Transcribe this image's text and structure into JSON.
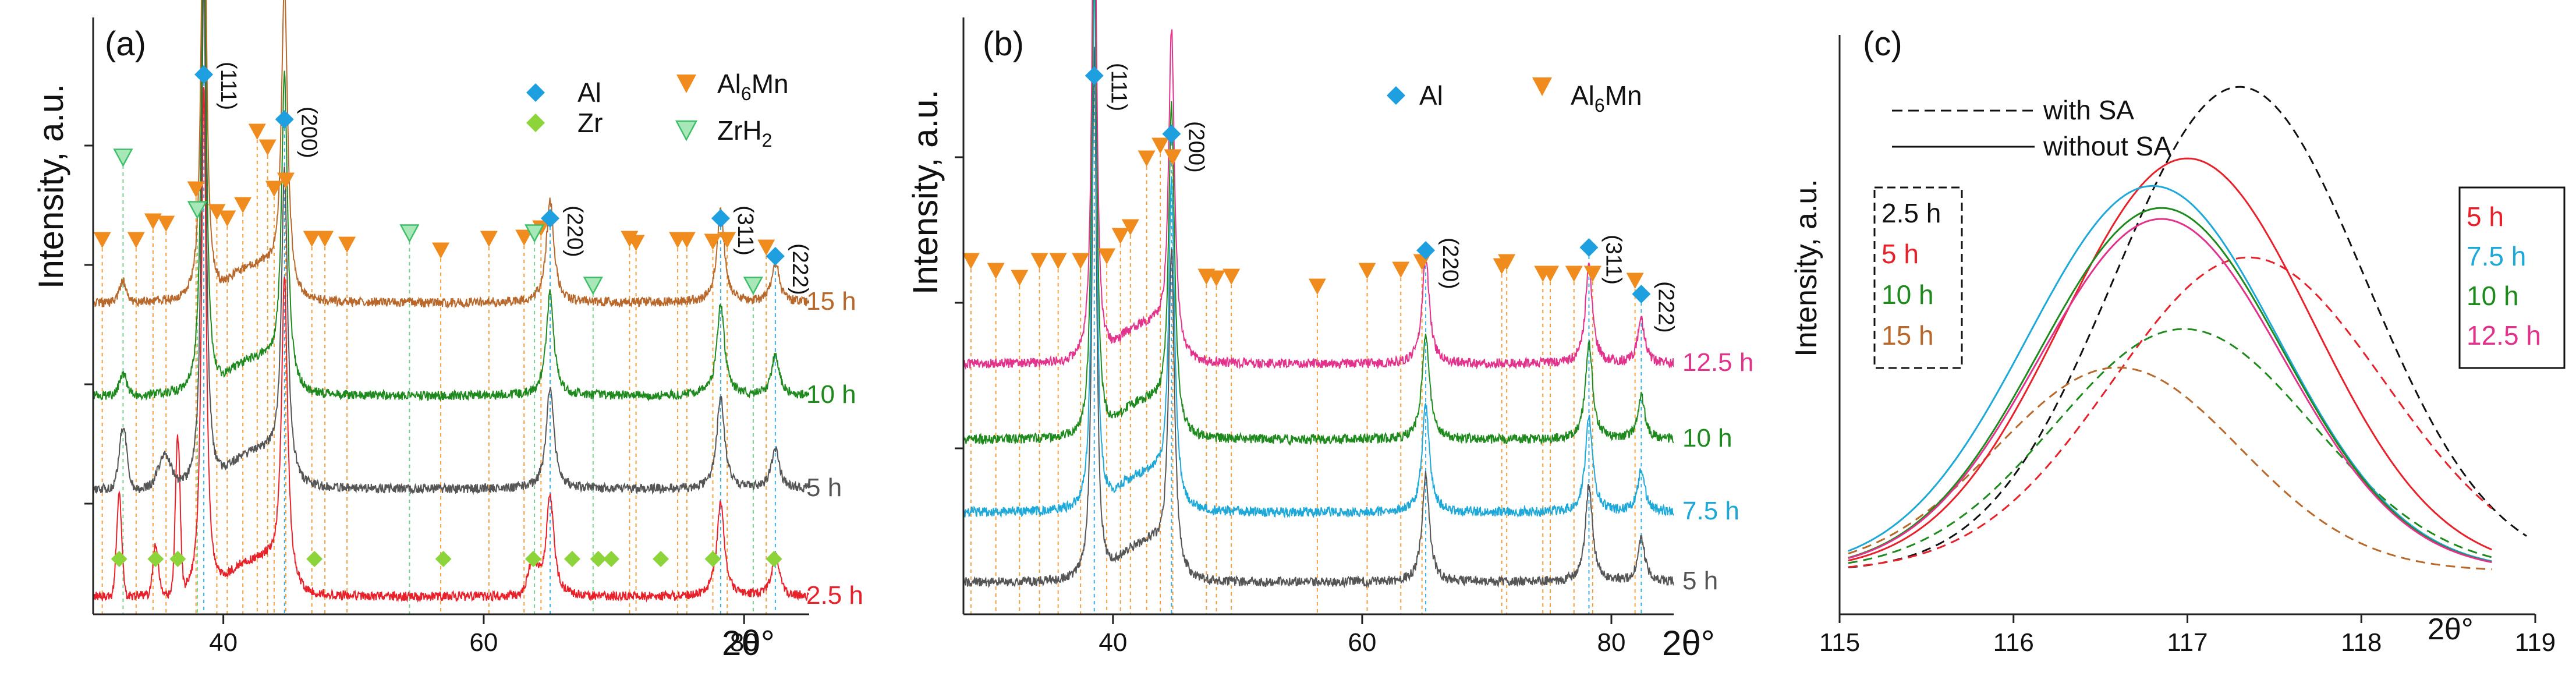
{
  "chart_data": [
    {
      "type": "line",
      "panel_label": "(a)",
      "xlabel": "2θ°",
      "ylabel": "Intensity, a.u.",
      "xlim": [
        30,
        85
      ],
      "xticks": [
        40,
        60,
        80
      ],
      "legend": [
        {
          "label": "Al",
          "marker": "diamond",
          "color": "#1E9FE0"
        },
        {
          "label": "Al6Mn",
          "marker": "triangle-down",
          "color": "#F08C1E"
        },
        {
          "label": "Zr",
          "marker": "diamond",
          "color": "#8CD43A"
        },
        {
          "label": "ZrH2",
          "marker": "triangle-down-open",
          "color": "#3FBF6A"
        }
      ],
      "series": [
        {
          "name": "2.5 h",
          "color": "#E8202A",
          "offset": 0
        },
        {
          "name": "5 h",
          "color": "#555555",
          "offset": 1
        },
        {
          "name": "10 h",
          "color": "#1E8A1E",
          "offset": 2
        },
        {
          "name": "15 h",
          "color": "#B8682A",
          "offset": 3
        }
      ],
      "al_peaks": [
        {
          "x": 38.5,
          "hkl": "(111)"
        },
        {
          "x": 44.7,
          "hkl": "(200)"
        },
        {
          "x": 65.1,
          "hkl": "(220)"
        },
        {
          "x": 78.2,
          "hkl": "(311)"
        },
        {
          "x": 82.4,
          "hkl": "(222)"
        }
      ],
      "al6mn_markers": [
        30.7,
        33.3,
        34.6,
        35.6,
        37.9,
        39.5,
        40.3,
        41.5,
        42.6,
        43.4,
        43.9,
        44.8,
        46.8,
        47.8,
        49.5,
        56.7,
        60.4,
        63.1,
        64.4,
        71.2,
        71.7,
        74.9,
        75.6,
        77.6,
        78.7,
        81.7
      ],
      "zr_markers": [
        32.0,
        34.8,
        36.5,
        47.0,
        56.9,
        63.8,
        66.8,
        68.8,
        69.8,
        73.6,
        77.6,
        82.3
      ],
      "zrh2_markers": [
        32.3,
        38.0,
        54.3,
        63.9,
        68.4,
        80.7
      ],
      "al6mn_label": "Al6Mn",
      "zrh2_label": "ZrH2"
    },
    {
      "type": "line",
      "panel_label": "(b)",
      "xlabel": "2θ°",
      "ylabel": "Intensity, a.u.",
      "xlim": [
        28,
        85
      ],
      "xticks": [
        40,
        60,
        80
      ],
      "legend": [
        {
          "label": "Al",
          "marker": "diamond",
          "color": "#1E9FE0"
        },
        {
          "label": "Al6Mn",
          "marker": "triangle-down",
          "color": "#F08C1E"
        }
      ],
      "series": [
        {
          "name": "5 h",
          "color": "#555555",
          "offset": 0
        },
        {
          "name": "7.5 h",
          "color": "#1EA8D8",
          "offset": 1
        },
        {
          "name": "10 h",
          "color": "#1E8A1E",
          "offset": 2
        },
        {
          "name": "12.5 h",
          "color": "#E2328C",
          "offset": 3
        }
      ],
      "al_peaks": [
        {
          "x": 38.5,
          "hkl": "(111)"
        },
        {
          "x": 44.7,
          "hkl": "(200)"
        },
        {
          "x": 65.1,
          "hkl": "(220)"
        },
        {
          "x": 78.2,
          "hkl": "(311)"
        },
        {
          "x": 82.4,
          "hkl": "(222)"
        }
      ],
      "al6mn_markers": [
        28.6,
        30.6,
        32.5,
        34.1,
        35.6,
        37.4,
        39.5,
        40.6,
        41.4,
        42.7,
        43.8,
        44.8,
        47.5,
        48.3,
        49.5,
        56.4,
        60.4,
        63.1,
        64.8,
        71.2,
        71.6,
        74.5,
        75.1,
        77.0,
        78.5,
        81.9
      ],
      "al6mn_label": "Al6Mn"
    },
    {
      "type": "line",
      "panel_label": "(c)",
      "xlabel": "2θ°",
      "ylabel": "Intensity, a.u.",
      "xlim": [
        115,
        119
      ],
      "xticks": [
        115,
        116,
        117,
        118,
        119
      ],
      "style_legend": [
        {
          "label": "with SA",
          "dash": "dashed"
        },
        {
          "label": "without SA",
          "dash": "solid"
        }
      ],
      "dashed_legend": [
        {
          "label": "2.5 h",
          "color": "#111111"
        },
        {
          "label": "5 h",
          "color": "#E8202A"
        },
        {
          "label": "10 h",
          "color": "#1E8A1E"
        },
        {
          "label": "15 h",
          "color": "#B8682A"
        }
      ],
      "solid_legend": [
        {
          "label": "5 h",
          "color": "#E8202A"
        },
        {
          "label": "7.5 h",
          "color": "#1EA8D8"
        },
        {
          "label": "10 h",
          "color": "#1E8A1E"
        },
        {
          "label": "12.5 h",
          "color": "#E2328C"
        }
      ],
      "series": [
        {
          "name": "2.5 h",
          "dash": "dashed",
          "color": "#111111",
          "center": 117.3,
          "height": 0.88,
          "width": 0.72
        },
        {
          "name": "5 h",
          "dash": "dashed",
          "color": "#E8202A",
          "center": 117.35,
          "height": 0.57,
          "width": 0.78
        },
        {
          "name": "10 h",
          "dash": "dashed",
          "color": "#1E8A1E",
          "center": 116.98,
          "height": 0.44,
          "width": 0.74
        },
        {
          "name": "15 h",
          "dash": "dashed",
          "color": "#B8682A",
          "center": 116.6,
          "height": 0.37,
          "width": 0.7
        },
        {
          "name": "5 h",
          "dash": "solid",
          "color": "#E8202A",
          "center": 117.0,
          "height": 0.75,
          "width": 0.72
        },
        {
          "name": "7.5 h",
          "dash": "solid",
          "color": "#1EA8D8",
          "center": 116.8,
          "height": 0.7,
          "width": 0.72
        },
        {
          "name": "10 h",
          "dash": "solid",
          "color": "#1E8A1E",
          "center": 116.85,
          "height": 0.66,
          "width": 0.7
        },
        {
          "name": "12.5 h",
          "dash": "solid",
          "color": "#E2328C",
          "center": 116.85,
          "height": 0.64,
          "width": 0.7
        }
      ]
    }
  ]
}
